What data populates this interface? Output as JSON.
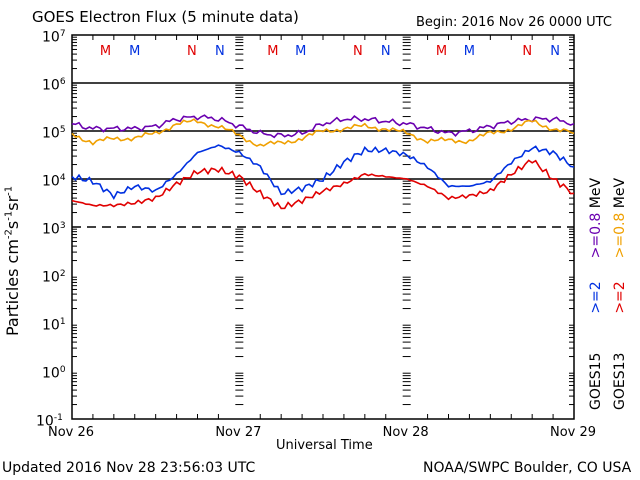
{
  "chart_data": {
    "type": "line",
    "title": "GOES Electron Flux (5 minute data)",
    "subtitle": "Begin: 2016 Nov 26 0000 UTC",
    "xlabel": "Universal Time",
    "ylabel": "Particles cm",
    "ylabel_parts": {
      "base": "Particles cm",
      "sup1": "-2",
      "s": "s",
      "sup2": "-1",
      "sr": "sr",
      "sup3": "-1"
    },
    "x_unit": "hours since 2016 Nov 26 0000 UTC",
    "xlim": [
      0,
      72
    ],
    "ylim_log10": [
      -1,
      7
    ],
    "yscale": "log",
    "x_ticks": [
      {
        "x": 0,
        "label": "Nov 26"
      },
      {
        "x": 24,
        "label": "Nov 27"
      },
      {
        "x": 48,
        "label": "Nov 28"
      },
      {
        "x": 72,
        "label": "Nov 29"
      }
    ],
    "y_ticks": [
      {
        "exp": 7,
        "base": "10",
        "sup": "7"
      },
      {
        "exp": 6,
        "base": "10",
        "sup": "6"
      },
      {
        "exp": 5,
        "base": "10",
        "sup": "5"
      },
      {
        "exp": 4,
        "base": "10",
        "sup": "4"
      },
      {
        "exp": 3,
        "base": "10",
        "sup": "3"
      },
      {
        "exp": 2,
        "base": "10",
        "sup": "2"
      },
      {
        "exp": 1,
        "base": "10",
        "sup": "1"
      },
      {
        "exp": 0,
        "base": "10",
        "sup": "0"
      },
      {
        "exp": -1,
        "base": "10",
        "sup": "-1"
      }
    ],
    "solid_lines_log10": [
      6,
      5,
      4
    ],
    "dashed_line_log10": 3,
    "markers": [
      {
        "x": 4.8,
        "label": "M",
        "color": "#e00000"
      },
      {
        "x": 9.0,
        "label": "M",
        "color": "#0030e0"
      },
      {
        "x": 17.2,
        "label": "N",
        "color": "#e00000"
      },
      {
        "x": 21.2,
        "label": "N",
        "color": "#0030e0"
      },
      {
        "x": 28.8,
        "label": "M",
        "color": "#e00000"
      },
      {
        "x": 32.8,
        "label": "M",
        "color": "#0030e0"
      },
      {
        "x": 41.0,
        "label": "N",
        "color": "#e00000"
      },
      {
        "x": 45.0,
        "label": "N",
        "color": "#0030e0"
      },
      {
        "x": 53.0,
        "label": "M",
        "color": "#e00000"
      },
      {
        "x": 57.0,
        "label": "M",
        "color": "#0030e0"
      },
      {
        "x": 65.3,
        "label": "N",
        "color": "#e00000"
      },
      {
        "x": 69.3,
        "label": "N",
        "color": "#0030e0"
      }
    ],
    "legend": [
      {
        "label": "GOES15",
        "color": "#000000"
      },
      {
        "label": ">=2",
        "color": "#0030e0"
      },
      {
        "label": ">=0.8",
        "color": "#6a00b0"
      },
      {
        "label": "MeV",
        "color": "#000000"
      },
      {
        "label": "GOES13",
        "color": "#000000"
      },
      {
        "label": ">=2",
        "color": "#e00000"
      },
      {
        "label": ">=0.8",
        "color": "#f0a000"
      },
      {
        "label": "MeV",
        "color": "#000000"
      }
    ],
    "legend_position": "right",
    "x": [
      0,
      3,
      6,
      9,
      12,
      15,
      18,
      21,
      24,
      27,
      30,
      33,
      36,
      39,
      42,
      45,
      48,
      51,
      54,
      57,
      60,
      63,
      66,
      69,
      72
    ],
    "series": [
      {
        "name": "GOES15 >=0.8 MeV",
        "color": "#6a00b0",
        "values_log10": [
          5.15,
          5.05,
          5.05,
          5.05,
          5.1,
          5.25,
          5.3,
          5.25,
          5.1,
          4.95,
          4.9,
          4.95,
          5.15,
          5.25,
          5.25,
          5.2,
          5.15,
          5.05,
          4.95,
          5.0,
          5.1,
          5.2,
          5.25,
          5.25,
          5.15
        ]
      },
      {
        "name": "GOES13 >=0.8 MeV",
        "color": "#f0a000",
        "values_log10": [
          4.95,
          4.75,
          4.85,
          4.85,
          4.95,
          5.15,
          5.2,
          5.1,
          4.9,
          4.7,
          4.75,
          4.85,
          5.0,
          5.05,
          5.1,
          5.05,
          4.95,
          4.8,
          4.8,
          4.8,
          4.95,
          5.05,
          5.2,
          5.05,
          4.95
        ]
      },
      {
        "name": "GOES15 >=2 MeV",
        "color": "#0030e0",
        "values_log10": [
          4.05,
          3.95,
          3.65,
          3.85,
          3.75,
          4.1,
          4.55,
          4.7,
          4.55,
          4.25,
          3.7,
          3.8,
          4.0,
          4.35,
          4.6,
          4.6,
          4.5,
          4.25,
          3.85,
          3.85,
          3.95,
          4.35,
          4.65,
          4.55,
          4.25
        ]
      },
      {
        "name": "GOES13 >=2 MeV",
        "color": "#e00000",
        "values_log10": [
          3.55,
          3.45,
          3.45,
          3.5,
          3.6,
          3.9,
          4.15,
          4.2,
          4.05,
          3.7,
          3.4,
          3.55,
          3.75,
          3.9,
          4.1,
          4.05,
          4.0,
          3.85,
          3.6,
          3.65,
          3.75,
          4.1,
          4.4,
          4.0,
          3.7
        ]
      }
    ]
  },
  "footer": {
    "updated": "Updated 2016 Nov 28 23:56:03 UTC",
    "credit": "NOAA/SWPC Boulder, CO USA"
  }
}
